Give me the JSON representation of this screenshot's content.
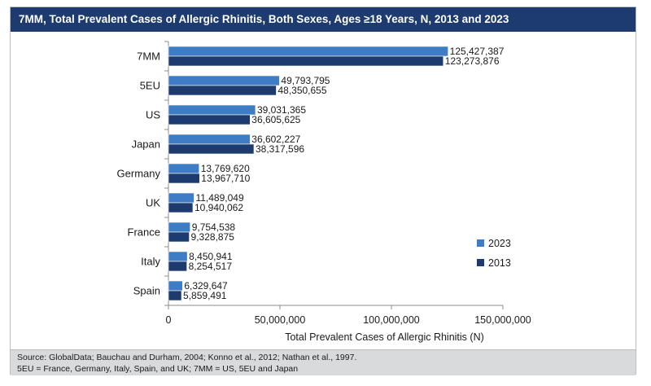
{
  "chart_data": {
    "type": "bar",
    "orientation": "horizontal",
    "title": "7MM, Total Prevalent Cases of Allergic Rhinitis, Both Sexes, Ages ≥18 Years, N, 2013 and 2023",
    "xlabel": "Total Prevalent Cases of Allergic Rhinitis (N)",
    "ylabel": "",
    "xlim": [
      0,
      150000000
    ],
    "x_ticks": [
      "0",
      "50,000,000",
      "100,000,000",
      "150,000,000"
    ],
    "x_tick_values": [
      0,
      50000000,
      100000000,
      150000000
    ],
    "grid": false,
    "legend_position": "right",
    "categories": [
      "7MM",
      "5EU",
      "US",
      "Japan",
      "Germany",
      "UK",
      "France",
      "Italy",
      "Spain"
    ],
    "series": [
      {
        "name": "2023",
        "color": "#3f7cc6",
        "values": [
          125427387,
          49793795,
          39031365,
          36602227,
          13769620,
          11489049,
          9754538,
          8450941,
          6329647
        ],
        "labels": [
          "125,427,387",
          "49,793,795",
          "39,031,365",
          "36,602,227",
          "13,769,620",
          "11,489,049",
          "9,754,538",
          "8,450,941",
          "6,329,647"
        ]
      },
      {
        "name": "2013",
        "color": "#1d3b6e",
        "values": [
          123273876,
          48350655,
          36605625,
          38317596,
          13967710,
          10940062,
          9328875,
          8254517,
          5859491
        ],
        "labels": [
          "123,273,876",
          "48,350,655",
          "36,605,625",
          "38,317,596",
          "13,967,710",
          "10,940,062",
          "9,328,875",
          "8,254,517",
          "5,859,491"
        ]
      }
    ]
  },
  "footer": {
    "source": "Source: GlobalData; Bauchau and Durham, 2004; Konno et al., 2012; Nathan et al., 1997.",
    "note": "5EU = France, Germany, Italy, Spain, and UK; 7MM = US, 5EU and Japan"
  }
}
